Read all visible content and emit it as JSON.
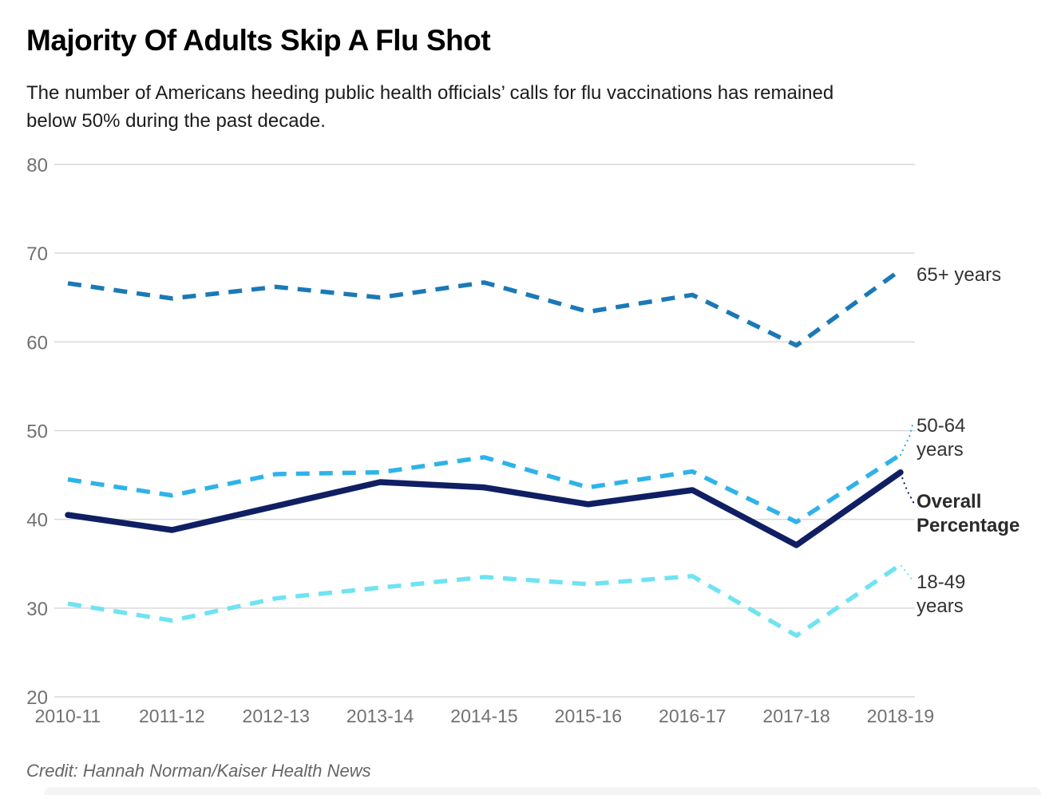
{
  "header": {
    "title": "Majority Of Adults Skip A Flu Shot",
    "subtitle_line1": "The number of Americans heeding public health officials’ calls for flu vaccinations has remained",
    "subtitle_line2": "below 50% during the past decade."
  },
  "footer": {
    "credit": "Credit: Hannah Norman/Kaiser Health News"
  },
  "colors": {
    "grid": "#d9d9d9",
    "axis_text": "#717171",
    "series_label": "#333333",
    "overall_label": "#2b2b2b"
  },
  "chart_data": {
    "type": "line",
    "title": "Majority Of Adults Skip A Flu Shot",
    "xlabel": "",
    "ylabel": "",
    "ylim": [
      20,
      80
    ],
    "yticks": [
      20,
      30,
      40,
      50,
      60,
      70,
      80
    ],
    "grid": true,
    "legend_position": "right-inline-labels",
    "categories": [
      "2010-11",
      "2011-12",
      "2012-13",
      "2013-14",
      "2014-15",
      "2015-16",
      "2016-17",
      "2017-18",
      "2018-19"
    ],
    "series": [
      {
        "name": "65+ years",
        "label_lines": [
          "65+ years"
        ],
        "style": "dashed",
        "color": "#1b79b7",
        "values": [
          66.6,
          64.9,
          66.2,
          65.0,
          66.7,
          63.4,
          65.3,
          59.6,
          68.1
        ]
      },
      {
        "name": "50-64 years",
        "label_lines": [
          "50-64",
          "years"
        ],
        "style": "dashed",
        "color": "#2eb3e9",
        "values": [
          44.5,
          42.7,
          45.1,
          45.3,
          47.0,
          43.6,
          45.4,
          39.7,
          47.3
        ]
      },
      {
        "name": "Overall Percentage",
        "label_lines": [
          "Overall",
          "Percentage"
        ],
        "style": "solid",
        "bold_label": true,
        "color": "#101f63",
        "values": [
          40.5,
          38.8,
          41.5,
          44.2,
          43.6,
          41.7,
          43.3,
          37.1,
          45.3
        ]
      },
      {
        "name": "18-49 years",
        "label_lines": [
          "18-49",
          "years"
        ],
        "style": "dashed",
        "color": "#6fe3f2",
        "values": [
          30.5,
          28.6,
          31.1,
          32.3,
          33.5,
          32.7,
          33.6,
          26.9,
          34.9
        ]
      }
    ]
  }
}
